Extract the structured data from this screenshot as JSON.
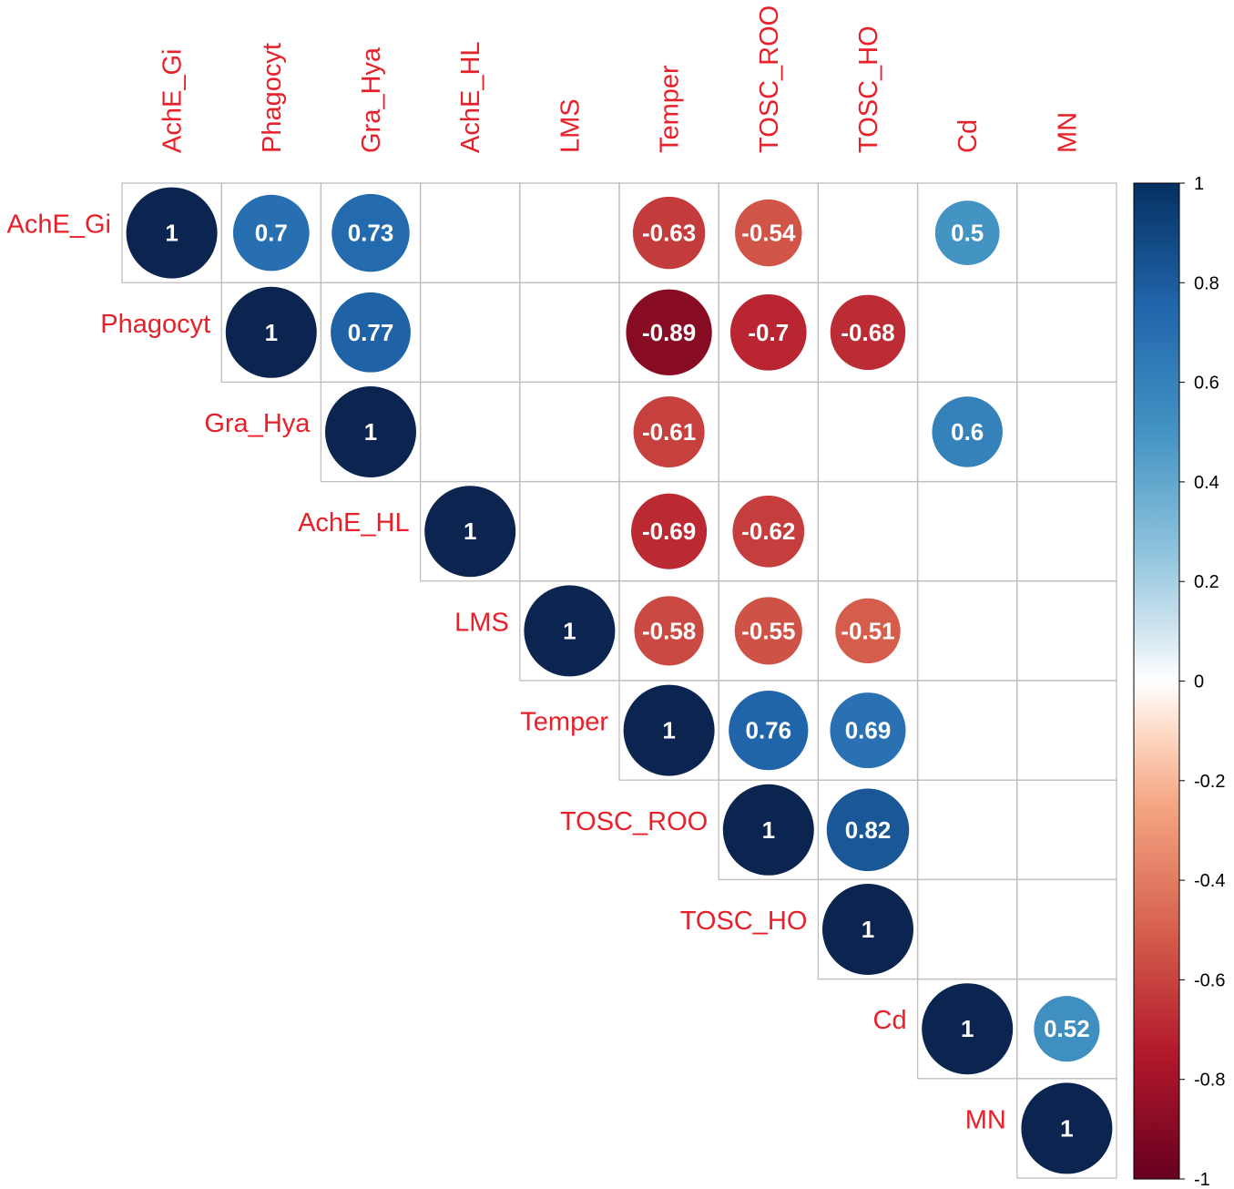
{
  "chart_data": {
    "type": "heatmap",
    "style": "upper-triangle correlation matrix with circles",
    "variables": [
      "AchE_Gi",
      "Phagocyt",
      "Gra_Hya",
      "AchE_HL",
      "LMS",
      "Temper",
      "TOSC_ROO",
      "TOSC_HO",
      "Cd",
      "MN"
    ],
    "cells": [
      {
        "row": 0,
        "col": 0,
        "value": 1,
        "label": "1"
      },
      {
        "row": 0,
        "col": 1,
        "value": 0.7,
        "label": "0.7"
      },
      {
        "row": 0,
        "col": 2,
        "value": 0.73,
        "label": "0.73"
      },
      {
        "row": 0,
        "col": 5,
        "value": -0.63,
        "label": "-0.63"
      },
      {
        "row": 0,
        "col": 6,
        "value": -0.54,
        "label": "-0.54"
      },
      {
        "row": 0,
        "col": 8,
        "value": 0.5,
        "label": "0.5"
      },
      {
        "row": 1,
        "col": 1,
        "value": 1,
        "label": "1"
      },
      {
        "row": 1,
        "col": 2,
        "value": 0.77,
        "label": "0.77"
      },
      {
        "row": 1,
        "col": 5,
        "value": -0.89,
        "label": "-0.89"
      },
      {
        "row": 1,
        "col": 6,
        "value": -0.7,
        "label": "-0.7"
      },
      {
        "row": 1,
        "col": 7,
        "value": -0.68,
        "label": "-0.68"
      },
      {
        "row": 2,
        "col": 2,
        "value": 1,
        "label": "1"
      },
      {
        "row": 2,
        "col": 5,
        "value": -0.61,
        "label": "-0.61"
      },
      {
        "row": 2,
        "col": 8,
        "value": 0.6,
        "label": "0.6"
      },
      {
        "row": 3,
        "col": 3,
        "value": 1,
        "label": "1"
      },
      {
        "row": 3,
        "col": 5,
        "value": -0.69,
        "label": "-0.69"
      },
      {
        "row": 3,
        "col": 6,
        "value": -0.62,
        "label": "-0.62"
      },
      {
        "row": 4,
        "col": 4,
        "value": 1,
        "label": "1"
      },
      {
        "row": 4,
        "col": 5,
        "value": -0.58,
        "label": "-0.58"
      },
      {
        "row": 4,
        "col": 6,
        "value": -0.55,
        "label": "-0.55"
      },
      {
        "row": 4,
        "col": 7,
        "value": -0.51,
        "label": "-0.51"
      },
      {
        "row": 5,
        "col": 5,
        "value": 1,
        "label": "1"
      },
      {
        "row": 5,
        "col": 6,
        "value": 0.76,
        "label": "0.76"
      },
      {
        "row": 5,
        "col": 7,
        "value": 0.69,
        "label": "0.69"
      },
      {
        "row": 6,
        "col": 6,
        "value": 1,
        "label": "1"
      },
      {
        "row": 6,
        "col": 7,
        "value": 0.82,
        "label": "0.82"
      },
      {
        "row": 7,
        "col": 7,
        "value": 1,
        "label": "1"
      },
      {
        "row": 8,
        "col": 8,
        "value": 1,
        "label": "1"
      },
      {
        "row": 8,
        "col": 9,
        "value": 0.52,
        "label": "0.52"
      },
      {
        "row": 9,
        "col": 9,
        "value": 1,
        "label": "1"
      }
    ],
    "color_scale": {
      "range": [
        -1,
        1
      ],
      "stops": [
        {
          "value": -1,
          "color": "#67001F"
        },
        {
          "value": -0.75,
          "color": "#B2182B"
        },
        {
          "value": -0.5,
          "color": "#D6604D"
        },
        {
          "value": -0.25,
          "color": "#F4A582"
        },
        {
          "value": -0.1,
          "color": "#FDDBC7"
        },
        {
          "value": 0,
          "color": "#FFFFFF"
        },
        {
          "value": 0.1,
          "color": "#D1E5F0"
        },
        {
          "value": 0.25,
          "color": "#92C5DE"
        },
        {
          "value": 0.5,
          "color": "#4393C3"
        },
        {
          "value": 0.75,
          "color": "#2166AC"
        },
        {
          "value": 1,
          "color": "#053061"
        }
      ],
      "ticks": [
        "1",
        "0.8",
        "0.6",
        "0.4",
        "0.2",
        "0",
        "-0.2",
        "-0.4",
        "-0.6",
        "-0.8",
        "-1"
      ],
      "tick_values": [
        1,
        0.8,
        0.6,
        0.4,
        0.2,
        0,
        -0.2,
        -0.4,
        -0.6,
        -0.8,
        -1
      ]
    },
    "label_color": "#E8202A",
    "grid_color": "#BEBEBE",
    "diagonal_color": "#0B2550"
  }
}
